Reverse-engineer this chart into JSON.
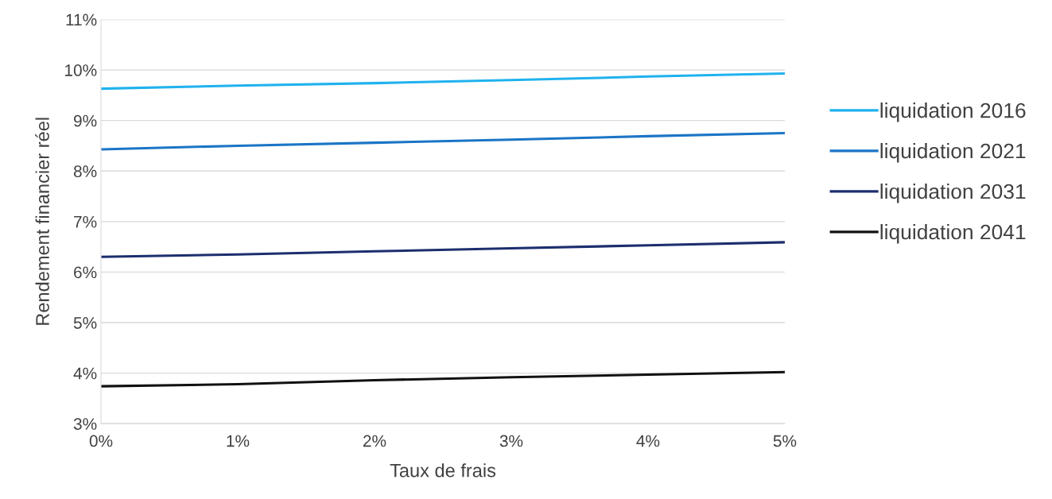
{
  "chart_data": {
    "type": "line",
    "xlabel": "Taux de frais",
    "ylabel": "Rendement financier réel",
    "x": [
      0,
      1,
      2,
      3,
      4,
      5
    ],
    "series": [
      {
        "name": "liquidation 2016",
        "color": "#20b2ee",
        "values": [
          9.63,
          9.69,
          9.74,
          9.8,
          9.87,
          9.93
        ]
      },
      {
        "name": "liquidation 2021",
        "color": "#1b75c6",
        "values": [
          8.43,
          8.5,
          8.56,
          8.62,
          8.69,
          8.75
        ]
      },
      {
        "name": "liquidation 2031",
        "color": "#1c2e6e",
        "values": [
          6.3,
          6.35,
          6.41,
          6.47,
          6.53,
          6.59
        ]
      },
      {
        "name": "liquidation 2041",
        "color": "#111111",
        "values": [
          3.74,
          3.78,
          3.86,
          3.92,
          3.97,
          4.02
        ]
      }
    ],
    "xlim": [
      0,
      5
    ],
    "xticks": [
      {
        "value": 0,
        "label": "0%"
      },
      {
        "value": 1,
        "label": "1%"
      },
      {
        "value": 2,
        "label": "2%"
      },
      {
        "value": 3,
        "label": "3%"
      },
      {
        "value": 4,
        "label": "4%"
      },
      {
        "value": 5,
        "label": "5%"
      }
    ],
    "ylim": [
      3,
      11
    ],
    "yticks": [
      {
        "value": 3,
        "label": "3%"
      },
      {
        "value": 4,
        "label": "4%"
      },
      {
        "value": 5,
        "label": "5%"
      },
      {
        "value": 6,
        "label": "6%"
      },
      {
        "value": 7,
        "label": "7%"
      },
      {
        "value": 8,
        "label": "8%"
      },
      {
        "value": 9,
        "label": "9%"
      },
      {
        "value": 10,
        "label": "10%"
      },
      {
        "value": 11,
        "label": "11%"
      }
    ],
    "grid": "y",
    "legend": "right",
    "marker": "none",
    "line_style": "solid"
  }
}
